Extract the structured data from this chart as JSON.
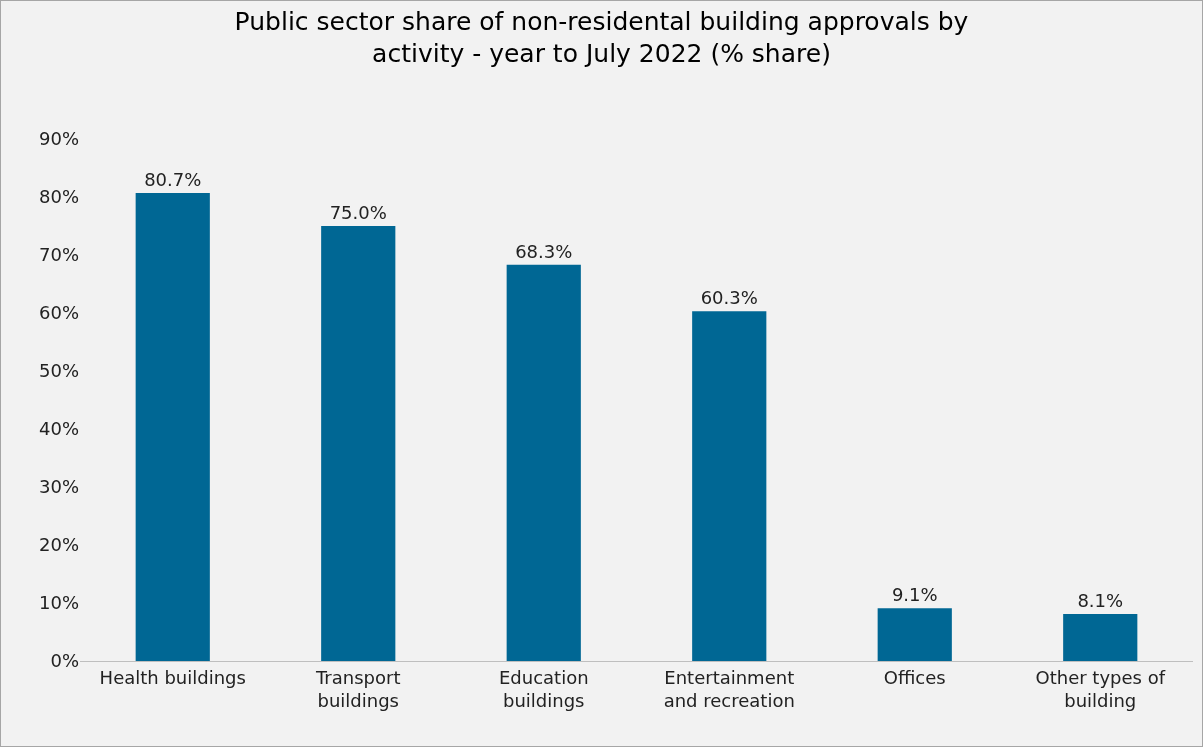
{
  "chart_data": {
    "type": "bar",
    "title": "Public sector share of non-residental building approvals by activity - year to July 2022 (% share)",
    "categories": [
      "Health buildings",
      "Transport buildings",
      "Education buildings",
      "Entertainment and recreation",
      "Offices",
      "Other types of building"
    ],
    "values": [
      80.7,
      75.0,
      68.3,
      60.3,
      9.1,
      8.1
    ],
    "value_labels": [
      "80.7%",
      "75.0%",
      "68.3%",
      "60.3%",
      "9.1%",
      "8.1%"
    ],
    "color": "#006794",
    "ylim": [
      0,
      90
    ],
    "yticks": [
      {
        "value": 0,
        "label": "0%"
      },
      {
        "value": 10,
        "label": "10%"
      },
      {
        "value": 20,
        "label": "20%"
      },
      {
        "value": 30,
        "label": "30%"
      },
      {
        "value": 40,
        "label": "40%"
      },
      {
        "value": 50,
        "label": "50%"
      },
      {
        "value": 60,
        "label": "60%"
      },
      {
        "value": 70,
        "label": "70%"
      },
      {
        "value": 80,
        "label": "80%"
      },
      {
        "value": 90,
        "label": "90%"
      }
    ],
    "grid": false,
    "legend": false
  }
}
